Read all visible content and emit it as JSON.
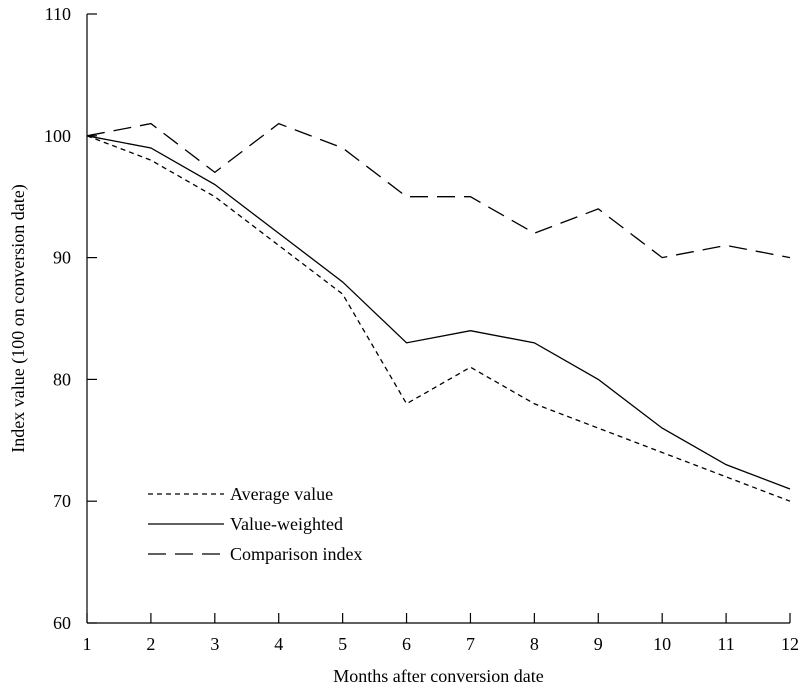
{
  "chart_data": {
    "type": "line",
    "title": "",
    "xlabel": "Months after conversion date",
    "ylabel": "Index value (100 on conversion date)",
    "x": [
      1,
      2,
      3,
      4,
      5,
      6,
      7,
      8,
      9,
      10,
      11,
      12
    ],
    "xlim": [
      1,
      12
    ],
    "ylim": [
      60,
      110
    ],
    "yticks": [
      60,
      70,
      80,
      90,
      100,
      110
    ],
    "xticks": [
      1,
      2,
      3,
      4,
      5,
      6,
      7,
      8,
      9,
      10,
      11,
      12
    ],
    "grid": false,
    "legend_position": "bottom-left",
    "series": [
      {
        "name": "Average value",
        "style": "short-dash",
        "values": [
          100,
          98,
          95,
          91,
          87,
          78,
          81,
          78,
          76,
          74,
          72,
          70
        ]
      },
      {
        "name": "Value-weighted",
        "style": "solid",
        "values": [
          100,
          99,
          96,
          92,
          88,
          83,
          84,
          83,
          80,
          76,
          73,
          71
        ]
      },
      {
        "name": "Comparison index",
        "style": "long-dash",
        "values": [
          100,
          101,
          97,
          101,
          99,
          95,
          95,
          92,
          94,
          90,
          91,
          90
        ]
      }
    ]
  }
}
